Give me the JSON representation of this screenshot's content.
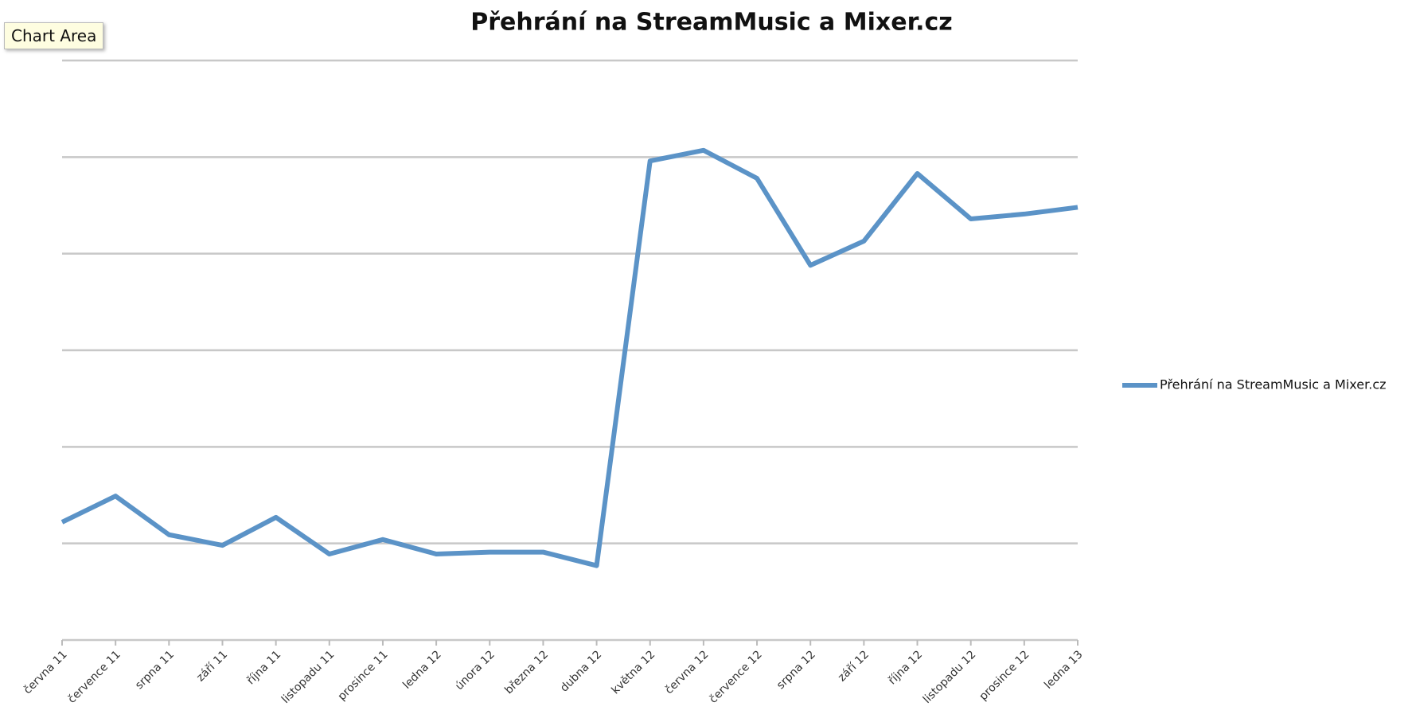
{
  "tooltip": "Chart Area",
  "chart_data": {
    "type": "line",
    "title": "Přehrání na StreamMusic a Mixer.cz",
    "categories": [
      "června 11",
      "července 11",
      "srpna 11",
      "září 11",
      "října 11",
      "listopadu 11",
      "prosince 11",
      "ledna 12",
      "února 12",
      "března 12",
      "dubna 12",
      "května 12",
      "června 12",
      "července 12",
      "srpna 12",
      "září 12",
      "října 12",
      "listopadu 12",
      "prosince 12",
      "ledna 13"
    ],
    "series": [
      {
        "name": "Přehrání na StreamMusic a Mixer.cz",
        "color": "#5b93c7",
        "values": [
          1.22,
          1.49,
          1.09,
          0.98,
          1.27,
          0.89,
          1.04,
          0.89,
          0.91,
          0.91,
          0.77,
          4.96,
          5.07,
          4.78,
          3.88,
          4.13,
          4.83,
          4.36,
          4.41,
          4.48
        ]
      }
    ],
    "ylim": [
      0,
      6
    ],
    "yticks": [
      0,
      1,
      2,
      3,
      4,
      5,
      6
    ],
    "grid": true,
    "legend": "right"
  }
}
